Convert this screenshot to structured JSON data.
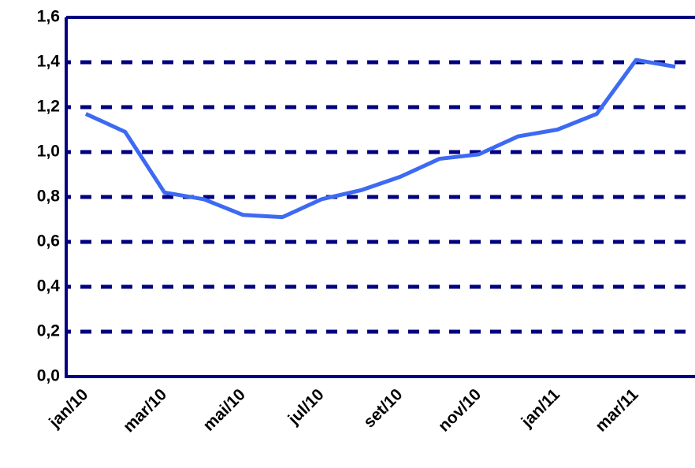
{
  "chart_data": {
    "type": "line",
    "categories": [
      "jan/10",
      null,
      "mar/10",
      null,
      "mai/10",
      null,
      "jul/10",
      null,
      "set/10",
      null,
      "nov/10",
      null,
      "jan/11",
      null,
      "mar/11",
      null
    ],
    "series": [
      {
        "color": "#3d6af2",
        "values": [
          1.17,
          1.09,
          0.82,
          0.79,
          0.72,
          0.71,
          0.79,
          0.83,
          0.89,
          0.97,
          0.99,
          1.07,
          1.1,
          1.17,
          1.41,
          1.38
        ]
      }
    ],
    "ylim": [
      0,
      1.6
    ],
    "yticks": [
      {
        "value": 0,
        "label": "0,0"
      },
      {
        "value": 0.2,
        "label": "0,2"
      },
      {
        "value": 0.4,
        "label": "0,4"
      },
      {
        "value": 0.6,
        "label": "0,6"
      },
      {
        "value": 0.8,
        "label": "0,8"
      },
      {
        "value": 1,
        "label": "1,0"
      },
      {
        "value": 1.2,
        "label": "1,2"
      },
      {
        "value": 1.4,
        "label": "1,4"
      },
      {
        "value": 1.6,
        "label": "1,6"
      }
    ],
    "grid": true
  }
}
